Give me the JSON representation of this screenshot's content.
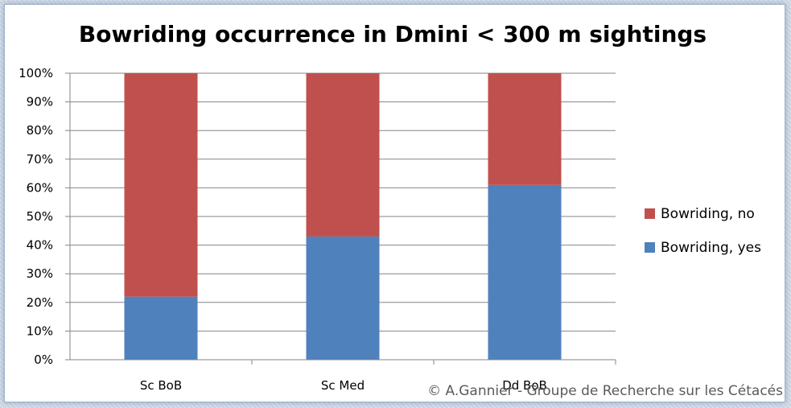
{
  "chart_data": {
    "type": "bar",
    "stacked": true,
    "percent": true,
    "title": "Bowriding occurrence in Dmini < 300 m sightings",
    "categories": [
      "Sc BoB",
      "Sc Med",
      "Dd BoB"
    ],
    "series": [
      {
        "name": "Bowriding, yes",
        "color": "#4f81bd",
        "values": [
          22,
          43,
          61
        ]
      },
      {
        "name": "Bowriding, no",
        "color": "#c0504d",
        "values": [
          78,
          57,
          39
        ]
      }
    ],
    "ylim": [
      0,
      100
    ],
    "yticks": [
      "0%",
      "10%",
      "20%",
      "30%",
      "40%",
      "50%",
      "60%",
      "70%",
      "80%",
      "90%",
      "100%"
    ],
    "grid": true,
    "legend_position": "right"
  },
  "copyright": "© A.Gannier - Groupe de Recherche sur les Cétacés"
}
